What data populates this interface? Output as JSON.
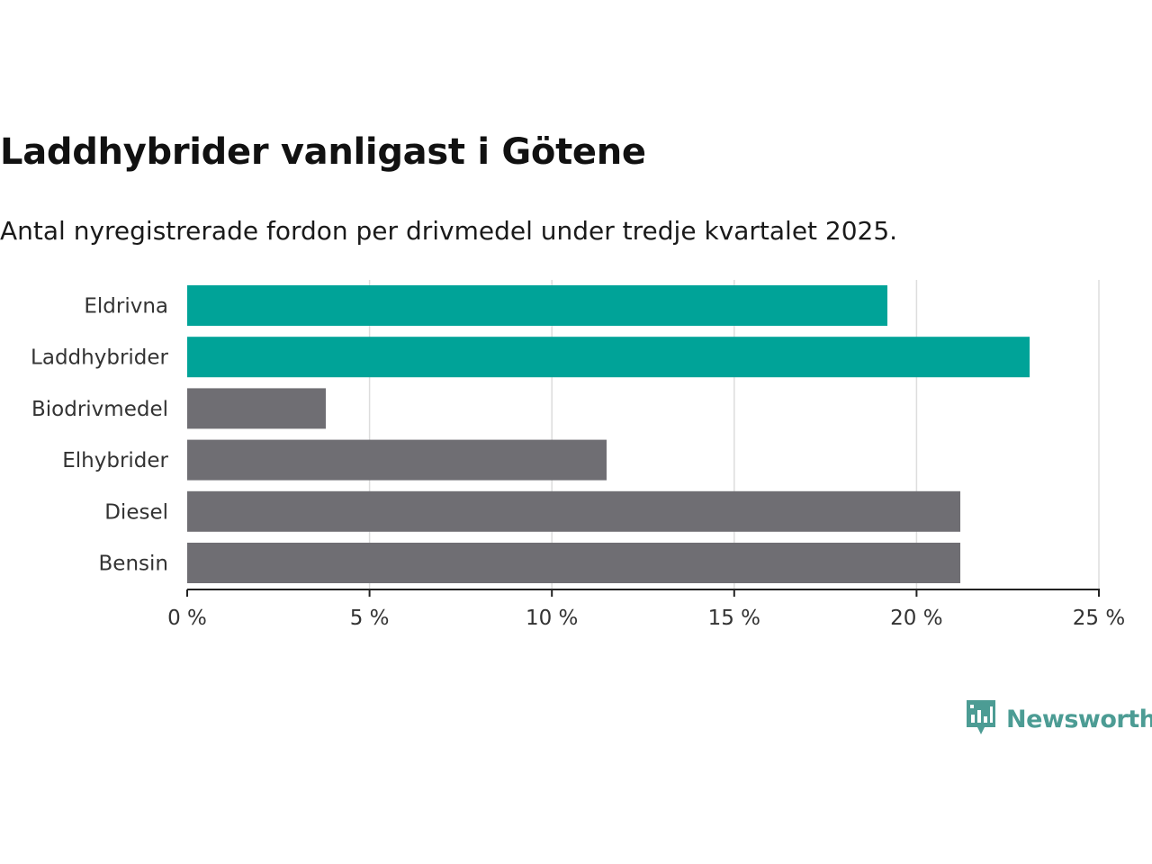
{
  "title": "Laddhybrider vanligast i Götene",
  "subtitle": "Antal nyregistrerade fordon per drivmedel under tredje kvartalet 2025.",
  "brand": {
    "name": "Newsworthy",
    "icon": "newsworthy-logo-icon",
    "color": "#4c9c94"
  },
  "colors": {
    "highlight": "#00a398",
    "default": "#6f6e73",
    "grid": "#dddddd",
    "axis": "#222222"
  },
  "chart_data": {
    "type": "bar",
    "orientation": "horizontal",
    "title": "Laddhybrider vanligast i Götene",
    "subtitle": "Antal nyregistrerade fordon per drivmedel under tredje kvartalet 2025.",
    "categories": [
      "Eldrivna",
      "Laddhybrider",
      "Biodrivmedel",
      "Elhybrider",
      "Diesel",
      "Bensin"
    ],
    "values": [
      19.2,
      23.1,
      3.8,
      11.5,
      21.2,
      21.2
    ],
    "highlighted": [
      true,
      true,
      false,
      false,
      false,
      false
    ],
    "unit": "%",
    "xlim": [
      0,
      25
    ],
    "xticks": [
      0,
      5,
      10,
      15,
      20,
      25
    ],
    "xtick_labels": [
      "0 %",
      "5 %",
      "10 %",
      "15 %",
      "20 %",
      "25 %"
    ],
    "xlabel": "",
    "ylabel": "",
    "grid": true,
    "legend": "none"
  }
}
